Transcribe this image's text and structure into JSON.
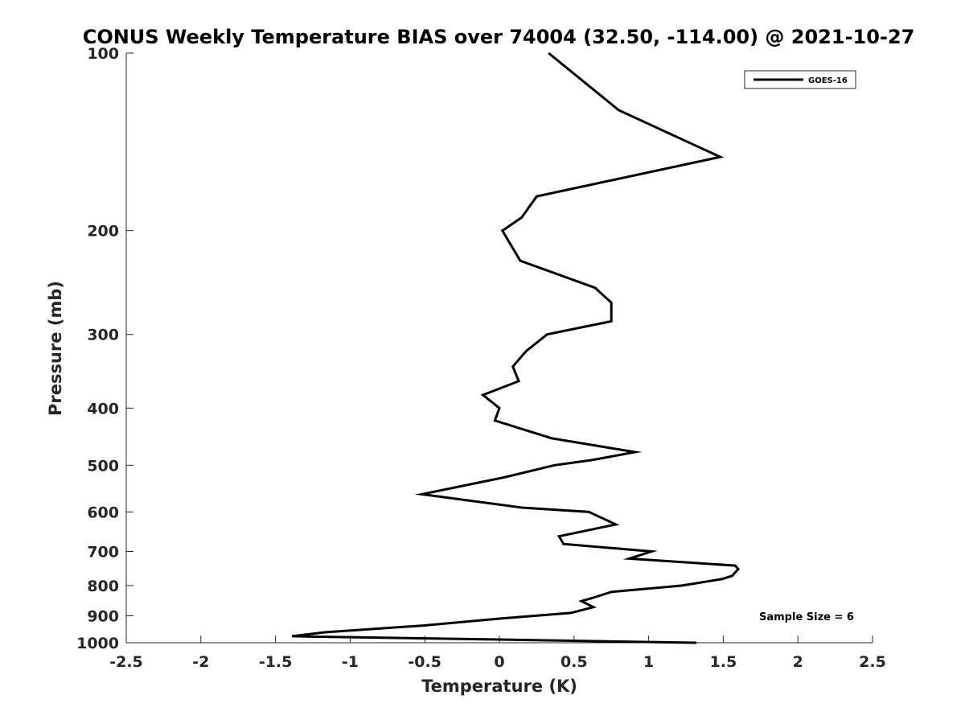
{
  "chart_data": {
    "type": "line",
    "title": "CONUS Weekly Temperature BIAS over 74004 (32.50, -114.00) @ 2021-10-27",
    "xlabel": "Temperature (K)",
    "ylabel": "Pressure (mb)",
    "xlim": [
      -2.5,
      2.5
    ],
    "ylim": [
      1000,
      100
    ],
    "y_scale": "log",
    "y_reversed": true,
    "grid": false,
    "legend_position": "top-right",
    "x_ticks": [
      -2.5,
      -2,
      -1.5,
      -1,
      -0.5,
      0,
      0.5,
      1,
      1.5,
      2,
      2.5
    ],
    "x_tick_labels": [
      "-2.5",
      "-2",
      "-1.5",
      "-1",
      "-0.5",
      "0",
      "0.5",
      "1",
      "1.5",
      "2",
      "2.5"
    ],
    "y_ticks": [
      100,
      200,
      300,
      400,
      500,
      600,
      700,
      800,
      900,
      1000
    ],
    "y_tick_labels": [
      "100",
      "200",
      "300",
      "400",
      "500",
      "600",
      "700",
      "800",
      "900",
      "1000"
    ],
    "series": [
      {
        "name": "GOES-16",
        "color": "#000000",
        "points": [
          {
            "x": 0.33,
            "y": 100
          },
          {
            "x": 0.8,
            "y": 125
          },
          {
            "x": 1.48,
            "y": 150
          },
          {
            "x": 0.25,
            "y": 175
          },
          {
            "x": 0.15,
            "y": 190
          },
          {
            "x": 0.02,
            "y": 200
          },
          {
            "x": 0.14,
            "y": 225
          },
          {
            "x": 0.64,
            "y": 250
          },
          {
            "x": 0.75,
            "y": 265
          },
          {
            "x": 0.75,
            "y": 285
          },
          {
            "x": 0.32,
            "y": 300
          },
          {
            "x": 0.18,
            "y": 320
          },
          {
            "x": 0.09,
            "y": 340
          },
          {
            "x": 0.13,
            "y": 360
          },
          {
            "x": -0.11,
            "y": 380
          },
          {
            "x": 0.0,
            "y": 400
          },
          {
            "x": -0.03,
            "y": 420
          },
          {
            "x": 0.35,
            "y": 450
          },
          {
            "x": 0.91,
            "y": 475
          },
          {
            "x": 0.62,
            "y": 490
          },
          {
            "x": 0.37,
            "y": 500
          },
          {
            "x": 0.02,
            "y": 525
          },
          {
            "x": -0.52,
            "y": 560
          },
          {
            "x": 0.15,
            "y": 590
          },
          {
            "x": 0.6,
            "y": 600
          },
          {
            "x": 0.78,
            "y": 630
          },
          {
            "x": 0.4,
            "y": 660
          },
          {
            "x": 0.43,
            "y": 680
          },
          {
            "x": 1.02,
            "y": 700
          },
          {
            "x": 0.87,
            "y": 720
          },
          {
            "x": 1.58,
            "y": 740
          },
          {
            "x": 1.6,
            "y": 750
          },
          {
            "x": 1.56,
            "y": 770
          },
          {
            "x": 1.49,
            "y": 780
          },
          {
            "x": 1.22,
            "y": 800
          },
          {
            "x": 0.75,
            "y": 820
          },
          {
            "x": 0.62,
            "y": 840
          },
          {
            "x": 0.55,
            "y": 850
          },
          {
            "x": 0.63,
            "y": 870
          },
          {
            "x": 0.48,
            "y": 890
          },
          {
            "x": 0.0,
            "y": 910
          },
          {
            "x": -0.51,
            "y": 935
          },
          {
            "x": -1.17,
            "y": 960
          },
          {
            "x": -1.39,
            "y": 975
          },
          {
            "x": 1.32,
            "y": 1000
          }
        ]
      }
    ],
    "legend": [
      {
        "label": "GOES-16",
        "color": "#000000"
      }
    ],
    "annotations": [
      {
        "text": "Sample Size = 6",
        "position": "bottom-right"
      }
    ]
  }
}
